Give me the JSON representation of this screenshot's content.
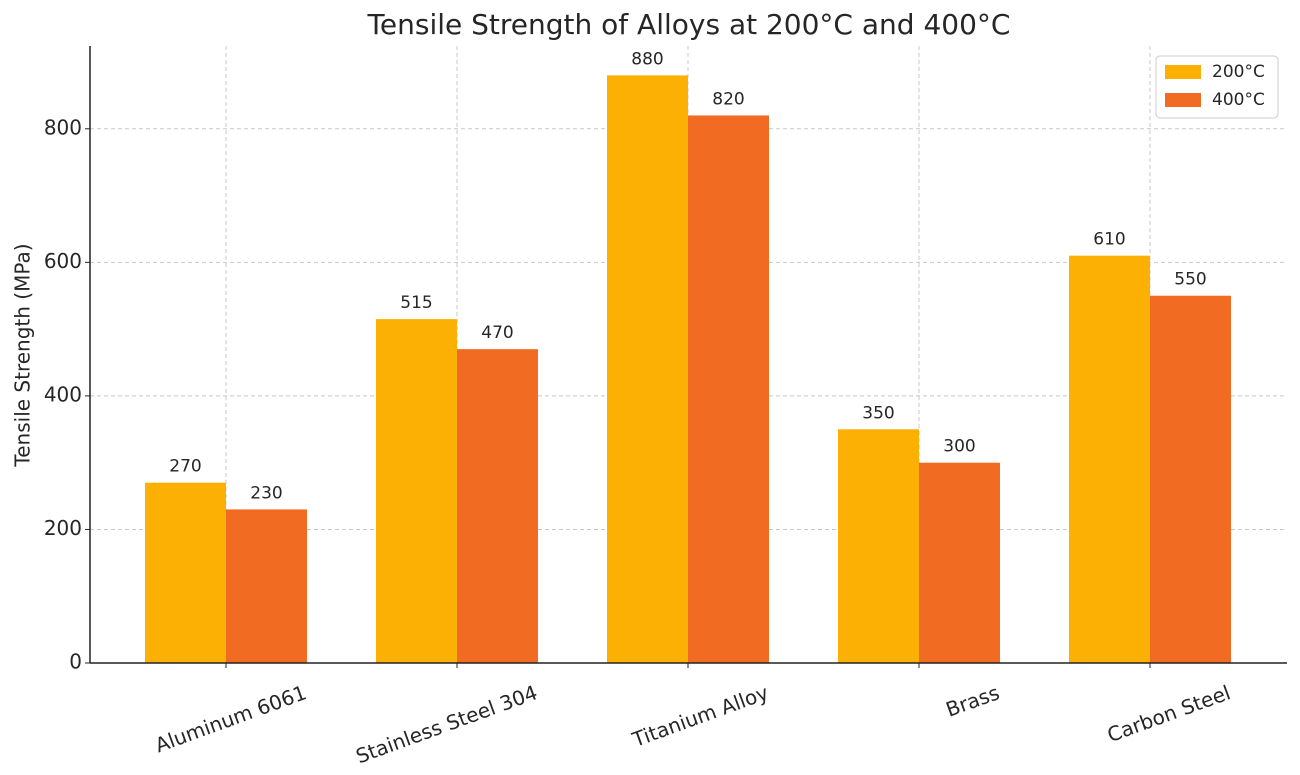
{
  "chart_data": {
    "type": "bar",
    "title": "Tensile Strength of Alloys at 200°C and 400°C",
    "y_label": "Tensile Strength (MPa)",
    "categories": [
      "Aluminum 6061",
      "Stainless Steel 304",
      "Titanium Alloy",
      "Brass",
      "Carbon Steel"
    ],
    "series": [
      {
        "name": "200°C",
        "color": "#fdb004",
        "values": [
          270,
          515,
          880,
          350,
          610
        ]
      },
      {
        "name": "400°C",
        "color": "#f26b22",
        "values": [
          230,
          470,
          820,
          300,
          550
        ]
      }
    ],
    "ylim": [
      0,
      924
    ],
    "yticks": [
      0,
      200,
      400,
      600,
      800
    ],
    "grid": true,
    "legend": "upper-right"
  }
}
